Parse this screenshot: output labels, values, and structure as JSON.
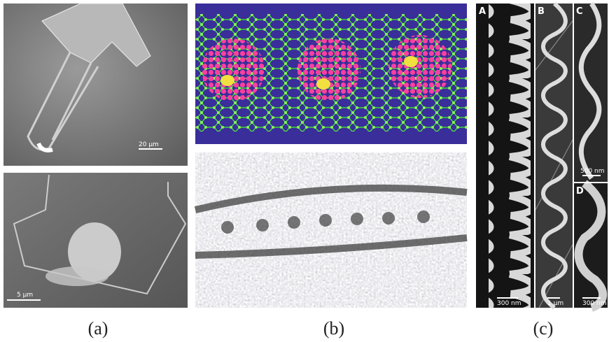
{
  "panels": {
    "a": {
      "label": "(a)",
      "top": {
        "scale_bar": "20 µm"
      },
      "bottom": {
        "scale_bar": "5 µm"
      }
    },
    "b": {
      "label": "(b)"
    },
    "c": {
      "label": "(c)",
      "subpanels": [
        {
          "letter": "A",
          "scale_bar": "300 nm"
        },
        {
          "letter": "B",
          "scale_bar": "1 µm"
        },
        {
          "letter": "C",
          "scale_bar": "500 nm"
        },
        {
          "letter": "D",
          "scale_bar": "300 nm"
        }
      ]
    }
  }
}
